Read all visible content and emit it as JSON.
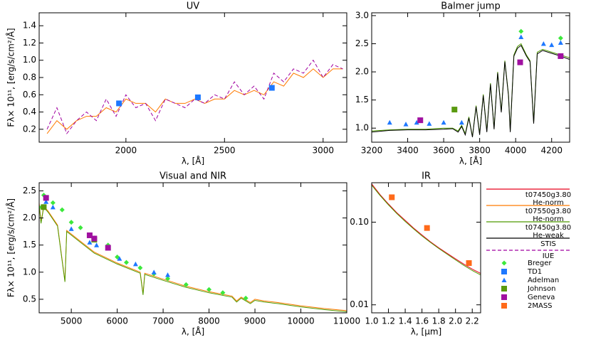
{
  "chart_data": [
    {
      "type": "line",
      "title": "UV",
      "xlabel": "λ, [Å]",
      "ylabel": "Fλ× 10¹¹, [erg/s/cm²/Å]",
      "xlim": [
        1560,
        3120
      ],
      "ylim": [
        0.05,
        1.55
      ],
      "xticks": [
        2000,
        2500,
        3000
      ],
      "yticks": [
        0.2,
        0.4,
        0.6,
        0.8,
        {
          "value": 1.0,
          "label": "1.0"
        },
        1.2,
        1.4
      ],
      "series": [
        {
          "name": "t07550g3.80 He-norm",
          "x": [
            1600,
            1650,
            1700,
            1750,
            1800,
            1850,
            1900,
            1950,
            2000,
            2050,
            2100,
            2150,
            2200,
            2250,
            2300,
            2350,
            2400,
            2450,
            2500,
            2550,
            2600,
            2650,
            2700,
            2750,
            2800,
            2850,
            2900,
            2950,
            3000,
            3050,
            3100
          ],
          "values": [
            0.15,
            0.3,
            0.2,
            0.3,
            0.35,
            0.35,
            0.45,
            0.4,
            0.55,
            0.5,
            0.5,
            0.4,
            0.55,
            0.5,
            0.5,
            0.55,
            0.5,
            0.55,
            0.55,
            0.65,
            0.6,
            0.65,
            0.6,
            0.75,
            0.7,
            0.85,
            0.8,
            0.9,
            0.8,
            0.9,
            0.9
          ]
        },
        {
          "name": "IUE",
          "x": [
            1600,
            1650,
            1700,
            1750,
            1800,
            1850,
            1900,
            1950,
            2000,
            2050,
            2100,
            2150,
            2200,
            2250,
            2300,
            2350,
            2400,
            2450,
            2500,
            2550,
            2600,
            2650,
            2700,
            2750,
            2800,
            2850,
            2900,
            2950,
            3000,
            3050,
            3100
          ],
          "values": [
            0.2,
            0.45,
            0.15,
            0.3,
            0.4,
            0.3,
            0.55,
            0.35,
            0.6,
            0.45,
            0.5,
            0.3,
            0.55,
            0.5,
            0.45,
            0.55,
            0.5,
            0.6,
            0.55,
            0.75,
            0.6,
            0.7,
            0.55,
            0.85,
            0.75,
            0.9,
            0.85,
            1.0,
            0.8,
            0.95,
            0.9
          ]
        },
        {
          "name": "TD1",
          "x": [
            1965,
            2365,
            2740
          ],
          "values": [
            0.5,
            0.57,
            0.68
          ]
        }
      ]
    },
    {
      "type": "line",
      "title": "Balmer jump",
      "xlabel": "λ, [Å]",
      "xlim": [
        3200,
        4300
      ],
      "ylim": [
        0.75,
        3.05
      ],
      "xticks": [
        3200,
        3400,
        3600,
        3800,
        4000,
        4200
      ],
      "yticks": [
        {
          "value": 1.0,
          "label": "1.0"
        },
        1.5,
        {
          "value": 2.0,
          "label": "2.0"
        },
        2.5,
        {
          "value": 3.0,
          "label": "3.0"
        }
      ],
      "series": [
        {
          "name": "t07450g3.80 He-weak",
          "x": [
            3200,
            3300,
            3400,
            3500,
            3600,
            3650,
            3680,
            3700,
            3720,
            3740,
            3760,
            3780,
            3800,
            3820,
            3840,
            3860,
            3880,
            3900,
            3920,
            3940,
            3960,
            3970,
            3990,
            4010,
            4030,
            4060,
            4080,
            4100,
            4120,
            4150,
            4200,
            4250,
            4300
          ],
          "values": [
            0.95,
            0.97,
            0.98,
            0.98,
            1.0,
            1.0,
            0.95,
            1.05,
            0.9,
            1.2,
            0.85,
            1.4,
            0.9,
            1.6,
            0.95,
            1.8,
            1.0,
            2.0,
            1.3,
            2.2,
            1.6,
            0.95,
            2.3,
            2.45,
            2.5,
            2.3,
            2.2,
            1.1,
            2.35,
            2.4,
            2.35,
            2.3,
            2.25
          ]
        },
        {
          "name": "STIS",
          "x": [
            3200,
            3300,
            3400,
            3500,
            3600,
            3650,
            3680,
            3700,
            3720,
            3740,
            3760,
            3780,
            3800,
            3820,
            3840,
            3860,
            3880,
            3900,
            3920,
            3940,
            3960,
            3970,
            3990,
            4010,
            4030,
            4060,
            4080,
            4100,
            4120,
            4150,
            4200,
            4250,
            4300
          ],
          "values": [
            0.93,
            0.96,
            0.97,
            0.97,
            0.98,
            0.99,
            0.93,
            1.03,
            0.88,
            1.18,
            0.84,
            1.38,
            0.88,
            1.58,
            0.93,
            1.78,
            0.98,
            1.98,
            1.28,
            2.18,
            1.58,
            0.93,
            2.28,
            2.42,
            2.47,
            2.28,
            2.18,
            1.08,
            2.32,
            2.38,
            2.33,
            2.28,
            2.22
          ]
        },
        {
          "name": "Breger",
          "x": [
            4030,
            4250
          ],
          "values": [
            2.72,
            2.6
          ]
        },
        {
          "name": "Adelman",
          "x": [
            3300,
            3390,
            3450,
            3520,
            3600,
            3700,
            4030,
            4155,
            4200,
            4250
          ],
          "values": [
            1.1,
            1.07,
            1.1,
            1.08,
            1.1,
            1.1,
            2.62,
            2.5,
            2.48,
            2.52
          ]
        },
        {
          "name": "Johnson",
          "x": [
            3660
          ],
          "values": [
            1.33
          ]
        },
        {
          "name": "Geneva",
          "x": [
            3470,
            4025,
            4250
          ],
          "values": [
            1.14,
            2.17,
            2.28
          ]
        }
      ]
    },
    {
      "type": "line",
      "title": "Visual and NIR",
      "xlabel": "λ, [Å]",
      "ylabel": "Fλ× 10¹¹, [erg/s/cm²/Å]",
      "xlim": [
        4300,
        11000
      ],
      "ylim": [
        0.25,
        2.65
      ],
      "xticks": [
        5000,
        6000,
        7000,
        8000,
        9000,
        10000,
        11000
      ],
      "yticks": [
        0.5,
        {
          "value": 1.0,
          "label": "1.0"
        },
        1.5,
        {
          "value": 2.0,
          "label": "2.0"
        },
        2.5
      ],
      "series": [
        {
          "name": "t07550g3.80 He-norm",
          "x": [
            4300,
            4340,
            4400,
            4500,
            4700,
            4861,
            4900,
            5200,
            5500,
            6000,
            6500,
            6563,
            6600,
            7000,
            7500,
            8000,
            8500,
            8600,
            8700,
            8900,
            9000,
            9200,
            9500,
            10000,
            10500,
            11000
          ],
          "values": [
            2.28,
            1.92,
            2.22,
            2.12,
            1.87,
            0.84,
            1.77,
            1.57,
            1.37,
            1.17,
            1.0,
            0.6,
            0.98,
            0.87,
            0.74,
            0.64,
            0.56,
            0.47,
            0.54,
            0.44,
            0.5,
            0.47,
            0.44,
            0.38,
            0.33,
            0.29
          ]
        },
        {
          "name": "t07450g3.80 He-weak",
          "x": [
            4300,
            4340,
            4400,
            4500,
            4700,
            4861,
            4900,
            5200,
            5500,
            6000,
            6500,
            6563,
            6600,
            7000,
            7500,
            8000,
            8500,
            8600,
            8700,
            8900,
            9000,
            9200,
            9500,
            10000,
            10500,
            11000
          ],
          "values": [
            2.25,
            1.9,
            2.2,
            2.1,
            1.85,
            0.82,
            1.75,
            1.55,
            1.35,
            1.15,
            0.98,
            0.58,
            0.96,
            0.85,
            0.72,
            0.62,
            0.54,
            0.45,
            0.52,
            0.42,
            0.48,
            0.45,
            0.42,
            0.36,
            0.31,
            0.27
          ]
        },
        {
          "name": "Breger",
          "x": [
            4350,
            4400,
            4600,
            4800,
            5000,
            5200,
            5500,
            5800,
            6000,
            6200,
            6500,
            6800,
            7100,
            7500,
            8000,
            8300,
            8800
          ],
          "values": [
            2.2,
            2.42,
            2.28,
            2.15,
            1.92,
            1.82,
            1.63,
            1.5,
            1.28,
            1.18,
            1.08,
            0.97,
            0.88,
            0.77,
            0.68,
            0.62,
            0.52
          ]
        },
        {
          "name": "Adelman",
          "x": [
            4450,
            4600,
            5000,
            5400,
            5550,
            6050,
            6400,
            6800,
            7100
          ],
          "values": [
            2.3,
            2.2,
            1.8,
            1.55,
            1.5,
            1.25,
            1.15,
            1.0,
            0.95
          ]
        },
        {
          "name": "Johnson",
          "x": [
            4400,
            5500
          ],
          "values": [
            2.2,
            1.6
          ]
        },
        {
          "name": "Geneva",
          "x": [
            4450,
            5400,
            5500,
            5800
          ],
          "values": [
            2.37,
            1.68,
            1.62,
            1.45
          ]
        }
      ]
    },
    {
      "type": "line",
      "title": "IR",
      "xlabel": "λ, [μm]",
      "log_y": true,
      "xlim": [
        1.0,
        2.3
      ],
      "ylim": [
        0.008,
        0.3
      ],
      "xticks": [
        {
          "value": 1.0,
          "label": "1.0"
        },
        1.2,
        1.4,
        1.6,
        1.8,
        {
          "value": 2.0,
          "label": "2.0"
        },
        2.2
      ],
      "yticks": [
        0.01,
        {
          "value": 0.1,
          "label": "0.10"
        }
      ],
      "series": [
        {
          "name": "t07450g3.80 He-norm",
          "x": [
            1.0,
            1.1,
            1.2,
            1.3,
            1.4,
            1.5,
            1.6,
            1.7,
            1.8,
            1.9,
            2.0,
            2.1,
            2.2,
            2.3
          ],
          "values": [
            0.29,
            0.215,
            0.166,
            0.13,
            0.105,
            0.085,
            0.07,
            0.058,
            0.049,
            0.042,
            0.036,
            0.031,
            0.027,
            0.024
          ]
        },
        {
          "name": "t07450g3.80 He-weak",
          "x": [
            1.0,
            1.1,
            1.2,
            1.3,
            1.4,
            1.5,
            1.6,
            1.7,
            1.8,
            1.9,
            2.0,
            2.1,
            2.2,
            2.3
          ],
          "values": [
            0.28,
            0.21,
            0.162,
            0.127,
            0.102,
            0.083,
            0.068,
            0.057,
            0.048,
            0.041,
            0.035,
            0.03,
            0.026,
            0.023
          ]
        },
        {
          "name": "2MASS",
          "x": [
            1.24,
            1.66,
            2.16
          ],
          "values": [
            0.2,
            0.085,
            0.032
          ]
        }
      ]
    }
  ],
  "legend": [
    {
      "name": "t07450g3.80 He-norm",
      "color": "#e8001c",
      "marker": "line"
    },
    {
      "name": "t07550g3.80 He-norm",
      "color": "#ff7a00",
      "marker": "line"
    },
    {
      "name": "t07450g3.80 He-weak",
      "color": "#4f9a00",
      "marker": "line"
    },
    {
      "name": "STIS",
      "color": "#000000",
      "marker": "line"
    },
    {
      "name": "IUE",
      "color": "#a000a0",
      "marker": "dashed"
    },
    {
      "name": "Breger",
      "color": "#3ce83c",
      "marker": "diamond"
    },
    {
      "name": "TD1",
      "color": "#1e78ff",
      "marker": "square"
    },
    {
      "name": "Adelman",
      "color": "#1e78ff",
      "marker": "triangle"
    },
    {
      "name": "Johnson",
      "color": "#5a9a10",
      "marker": "square"
    },
    {
      "name": "Geneva",
      "color": "#a010a0",
      "marker": "square"
    },
    {
      "name": "2MASS",
      "color": "#ff6a1a",
      "marker": "square"
    }
  ]
}
